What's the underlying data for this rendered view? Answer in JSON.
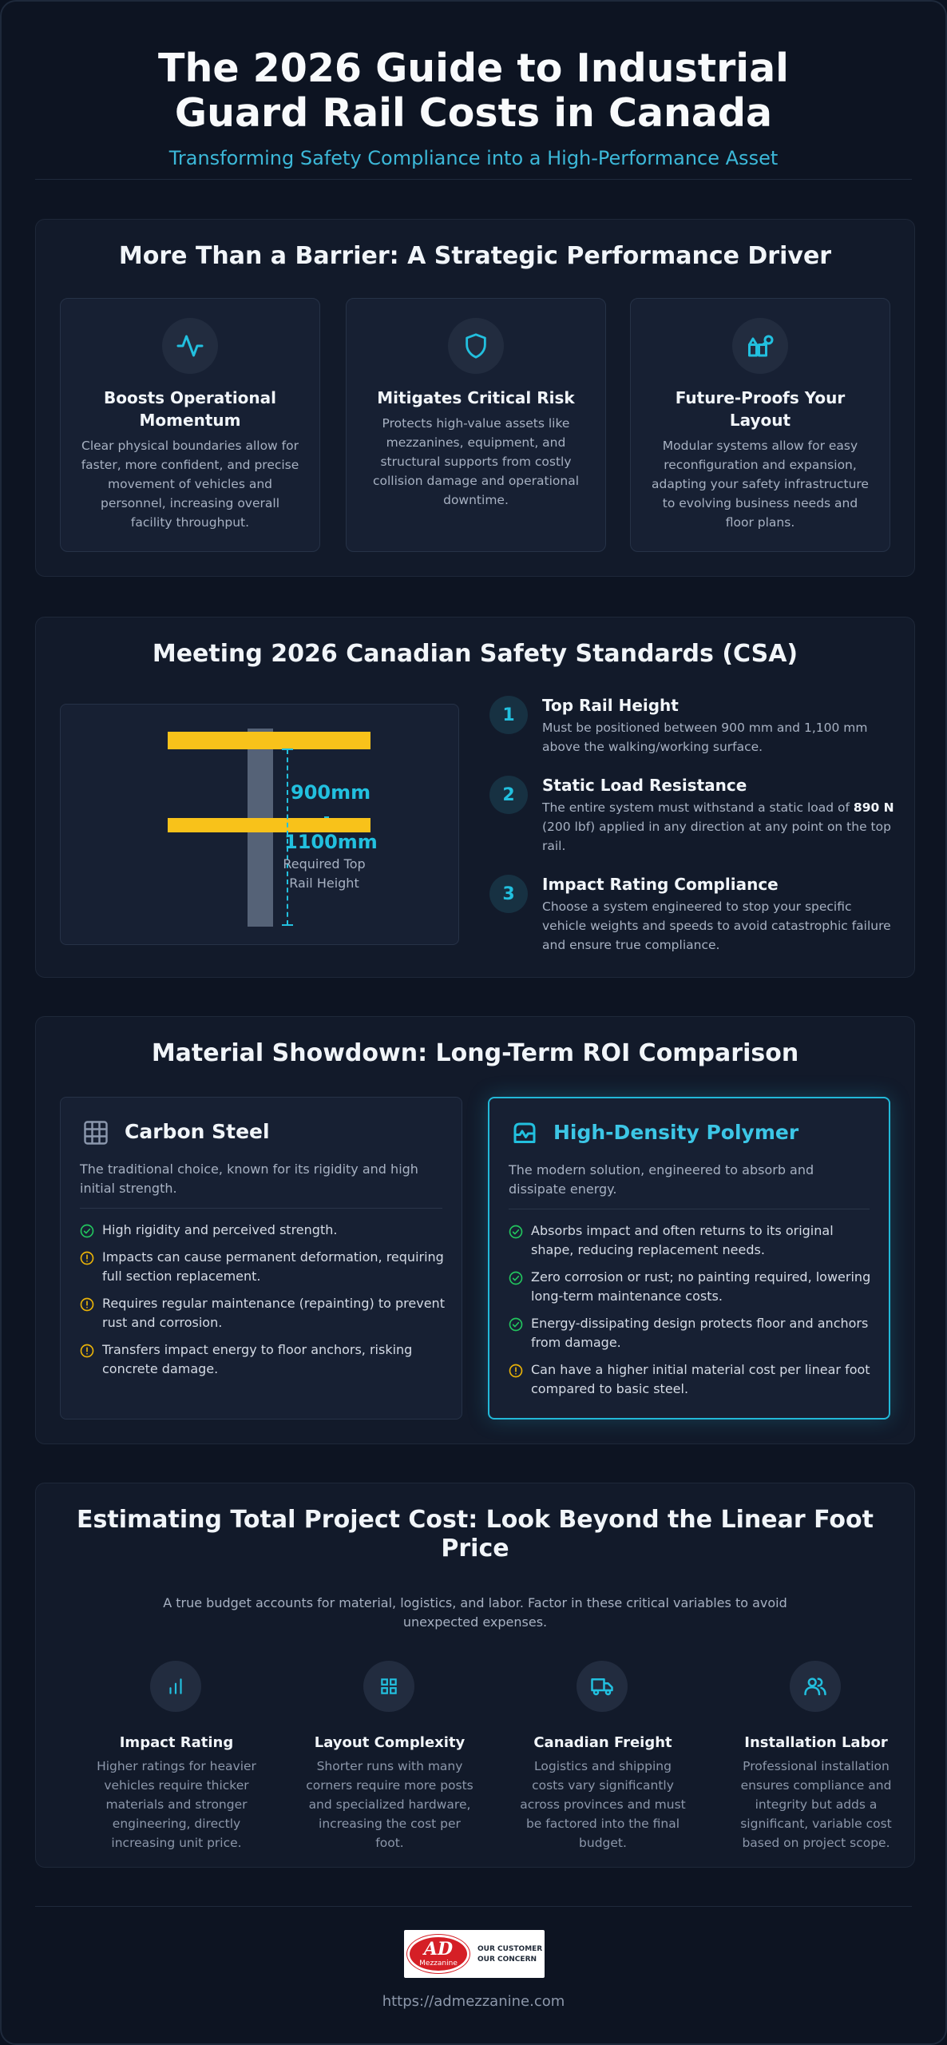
{
  "header": {
    "title": "The 2026 Guide to Industrial Guard Rail Costs in Canada",
    "subtitle": "Transforming Safety Compliance into a High-Performance Asset"
  },
  "drivers": {
    "title": "More Than a Barrier: A Strategic Performance Driver",
    "cards": [
      {
        "icon": "activity-icon",
        "title": "Boosts Operational Momentum",
        "text": "Clear physical boundaries allow for faster, more confident, and precise movement of vehicles and personnel, increasing overall facility throughput."
      },
      {
        "icon": "shield-icon",
        "title": "Mitigates Critical Risk",
        "text": "Protects high-value assets like mezzanines, equipment, and structural supports from costly collision damage and operational downtime."
      },
      {
        "icon": "layout-blocks-icon",
        "title": "Future-Proofs Your Layout",
        "text": "Modular systems allow for easy reconfiguration and expansion, adapting your safety infrastructure to evolving business needs and floor plans."
      }
    ]
  },
  "csa": {
    "title": "Meeting 2026 Canadian Safety Standards (CSA)",
    "diagram": {
      "label_low": "900mm",
      "label_high": "1100mm",
      "caption": "Required Top Rail Height"
    },
    "steps": [
      {
        "num": "1",
        "title": "Top Rail Height",
        "text": "Must be positioned between 900 mm and 1,100 mm above the walking/working surface."
      },
      {
        "num": "2",
        "title": "Static Load Resistance",
        "text_before": "The entire system must withstand a static load of ",
        "text_bold": "890 N",
        "text_after": " (200 lbf) applied in any direction at any point on the top rail."
      },
      {
        "num": "3",
        "title": "Impact Rating Compliance",
        "text": "Choose a system engineered to stop your specific vehicle weights and speeds to avoid catastrophic failure and ensure true compliance."
      }
    ]
  },
  "materials": {
    "title": "Material Showdown: Long-Term ROI Comparison",
    "steel": {
      "title": "Carbon Steel",
      "desc": "The traditional choice, known for its rigidity and high initial strength.",
      "items": [
        {
          "kind": "check",
          "text": "High rigidity and perceived strength."
        },
        {
          "kind": "warn",
          "text": "Impacts can cause permanent deformation, requiring full section replacement."
        },
        {
          "kind": "warn",
          "text": "Requires regular maintenance (repainting) to prevent rust and corrosion."
        },
        {
          "kind": "warn",
          "text": "Transfers impact energy to floor anchors, risking concrete damage."
        }
      ]
    },
    "polymer": {
      "title": "High-Density Polymer",
      "desc": "The modern solution, engineered to absorb and dissipate energy.",
      "items": [
        {
          "kind": "check",
          "text": "Absorbs impact and often returns to its original shape, reducing replacement needs."
        },
        {
          "kind": "check",
          "text": "Zero corrosion or rust; no painting required, lowering long-term maintenance costs."
        },
        {
          "kind": "check",
          "text": "Energy-dissipating design protects floor and anchors from damage."
        },
        {
          "kind": "warn",
          "text": "Can have a higher initial material cost per linear foot compared to basic steel."
        }
      ]
    }
  },
  "estimate": {
    "title": "Estimating Total Project Cost: Look Beyond the Linear Foot Price",
    "lead": "A true budget accounts for material, logistics, and labor. Factor in these critical variables to avoid unexpected expenses.",
    "factors": [
      {
        "icon": "bar-chart-icon",
        "title": "Impact Rating",
        "text": "Higher ratings for heavier vehicles require thicker materials and stronger engineering, directly increasing unit price."
      },
      {
        "icon": "grid-icon",
        "title": "Layout Complexity",
        "text": "Shorter runs with many corners require more posts and specialized hardware, increasing the cost per foot."
      },
      {
        "icon": "truck-icon",
        "title": "Canadian Freight",
        "text": "Logistics and shipping costs vary significantly across provinces and must be factored into the final budget."
      },
      {
        "icon": "users-icon",
        "title": "Installation Labor",
        "text": "Professional installation ensures compliance and integrity but adds a significant, variable cost based on project scope."
      }
    ]
  },
  "footer": {
    "logo_letters": "AD",
    "logo_word": "Mezzanine",
    "logo_tag_1": "OUR CUSTOMER",
    "logo_tag_2": "OUR CONCERN",
    "url": "https://admezzanine.com"
  },
  "colors": {
    "accent": "#22c0df",
    "rail": "#f8c21a",
    "check": "#22c55e",
    "warn": "#eab308",
    "background": "#0d1422"
  }
}
